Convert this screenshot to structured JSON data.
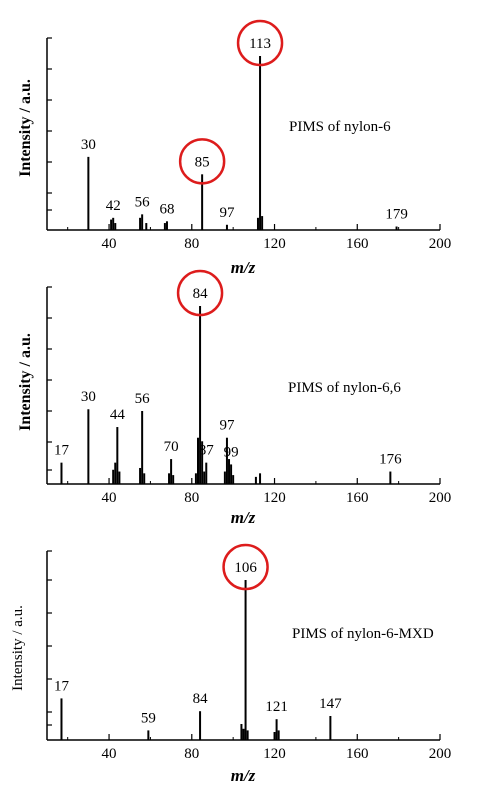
{
  "colors": {
    "axis": "#000000",
    "peak": "#000000",
    "highlight": "#dd1c1c"
  },
  "chart_data": [
    {
      "type": "bar",
      "annotation": "PIMS of nylon-6",
      "ylabel": "Intensity / a.u.",
      "xlabel": "m/z",
      "xlim": [
        10,
        200
      ],
      "ylim": [
        0,
        100
      ],
      "xticks": [
        40,
        80,
        120,
        160,
        200
      ],
      "xticklabels": [
        "40",
        "80",
        "120",
        "160",
        "200"
      ],
      "peaks": [
        {
          "mz": 30,
          "i": 42
        },
        {
          "mz": 41,
          "i": 6
        },
        {
          "mz": 42,
          "i": 7
        },
        {
          "mz": 43,
          "i": 4
        },
        {
          "mz": 55,
          "i": 7
        },
        {
          "mz": 56,
          "i": 9
        },
        {
          "mz": 58,
          "i": 4
        },
        {
          "mz": 67,
          "i": 4
        },
        {
          "mz": 68,
          "i": 5
        },
        {
          "mz": 85,
          "i": 32
        },
        {
          "mz": 97,
          "i": 3
        },
        {
          "mz": 112,
          "i": 7
        },
        {
          "mz": 113,
          "i": 100
        },
        {
          "mz": 114,
          "i": 8
        },
        {
          "mz": 179,
          "i": 2
        }
      ],
      "labels": [
        {
          "text": "30",
          "mz": 30,
          "i": 42,
          "highlight": false
        },
        {
          "text": "42",
          "mz": 42,
          "i": 7,
          "highlight": false
        },
        {
          "text": "56",
          "mz": 56,
          "i": 9,
          "highlight": false
        },
        {
          "text": "68",
          "mz": 68,
          "i": 5,
          "highlight": false
        },
        {
          "text": "85",
          "mz": 85,
          "i": 32,
          "highlight": true
        },
        {
          "text": "97",
          "mz": 97,
          "i": 3,
          "highlight": false
        },
        {
          "text": "113",
          "mz": 113,
          "i": 100,
          "highlight": true
        },
        {
          "text": "179",
          "mz": 179,
          "i": 2,
          "highlight": false
        }
      ]
    },
    {
      "type": "bar",
      "annotation": "PIMS of nylon-6,6",
      "ylabel": "Intensity / a.u.",
      "xlabel": "m/z",
      "xlim": [
        10,
        200
      ],
      "ylim": [
        0,
        100
      ],
      "xticks": [
        40,
        80,
        120,
        160,
        200
      ],
      "xticklabels": [
        "40",
        "80",
        "120",
        "160",
        "200"
      ],
      "peaks": [
        {
          "mz": 17,
          "i": 12
        },
        {
          "mz": 30,
          "i": 42
        },
        {
          "mz": 42,
          "i": 8
        },
        {
          "mz": 43,
          "i": 12
        },
        {
          "mz": 44,
          "i": 32
        },
        {
          "mz": 45,
          "i": 7
        },
        {
          "mz": 55,
          "i": 9
        },
        {
          "mz": 56,
          "i": 41
        },
        {
          "mz": 57,
          "i": 6
        },
        {
          "mz": 69,
          "i": 6
        },
        {
          "mz": 70,
          "i": 14
        },
        {
          "mz": 71,
          "i": 5
        },
        {
          "mz": 82,
          "i": 6
        },
        {
          "mz": 83,
          "i": 26
        },
        {
          "mz": 84,
          "i": 100
        },
        {
          "mz": 85,
          "i": 24
        },
        {
          "mz": 86,
          "i": 7
        },
        {
          "mz": 87,
          "i": 12
        },
        {
          "mz": 96,
          "i": 7
        },
        {
          "mz": 97,
          "i": 26
        },
        {
          "mz": 98,
          "i": 14
        },
        {
          "mz": 99,
          "i": 11
        },
        {
          "mz": 100,
          "i": 5
        },
        {
          "mz": 111,
          "i": 4
        },
        {
          "mz": 113,
          "i": 6
        },
        {
          "mz": 176,
          "i": 7
        }
      ],
      "labels": [
        {
          "text": "17",
          "mz": 17,
          "i": 12,
          "highlight": false
        },
        {
          "text": "30",
          "mz": 30,
          "i": 42,
          "highlight": false
        },
        {
          "text": "44",
          "mz": 44,
          "i": 32,
          "highlight": false
        },
        {
          "text": "56",
          "mz": 56,
          "i": 41,
          "highlight": false
        },
        {
          "text": "70",
          "mz": 70,
          "i": 14,
          "highlight": false
        },
        {
          "text": "84",
          "mz": 84,
          "i": 100,
          "highlight": true
        },
        {
          "text": "87",
          "mz": 87,
          "i": 12,
          "highlight": false
        },
        {
          "text": "97",
          "mz": 97,
          "i": 26,
          "highlight": false
        },
        {
          "text": "99",
          "mz": 99,
          "i": 11,
          "highlight": false
        },
        {
          "text": "176",
          "mz": 176,
          "i": 7,
          "highlight": false
        }
      ]
    },
    {
      "type": "bar",
      "annotation": "PIMS of nylon-6-MXD",
      "ylabel": "Intensity / a.u.",
      "xlabel": "m/z",
      "xlim": [
        10,
        200
      ],
      "ylim": [
        0,
        100
      ],
      "xticks": [
        40,
        80,
        120,
        160,
        200
      ],
      "xticklabels": [
        "40",
        "80",
        "120",
        "160",
        "200"
      ],
      "peaks": [
        {
          "mz": 17,
          "i": 26
        },
        {
          "mz": 59,
          "i": 6
        },
        {
          "mz": 84,
          "i": 18
        },
        {
          "mz": 104,
          "i": 10
        },
        {
          "mz": 105,
          "i": 7
        },
        {
          "mz": 106,
          "i": 100
        },
        {
          "mz": 107,
          "i": 6
        },
        {
          "mz": 120,
          "i": 5
        },
        {
          "mz": 121,
          "i": 13
        },
        {
          "mz": 122,
          "i": 6
        },
        {
          "mz": 147,
          "i": 15
        }
      ],
      "labels": [
        {
          "text": "17",
          "mz": 17,
          "i": 26,
          "highlight": false
        },
        {
          "text": "59",
          "mz": 59,
          "i": 6,
          "highlight": false
        },
        {
          "text": "84",
          "mz": 84,
          "i": 18,
          "highlight": false
        },
        {
          "text": "106",
          "mz": 106,
          "i": 100,
          "highlight": true
        },
        {
          "text": "121",
          "mz": 121,
          "i": 13,
          "highlight": false
        },
        {
          "text": "147",
          "mz": 147,
          "i": 15,
          "highlight": false
        }
      ]
    }
  ]
}
